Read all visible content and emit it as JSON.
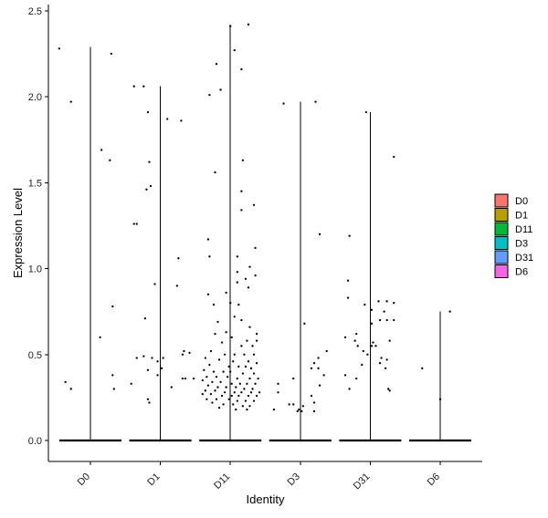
{
  "chart_data": {
    "type": "scatter",
    "subtype": "violin_with_jitter",
    "title": "",
    "xlabel": "Identity",
    "ylabel": "Expression Level",
    "ylim": [
      -0.13,
      2.55
    ],
    "yticks": [
      0.0,
      0.5,
      1.0,
      1.5,
      2.0,
      2.5
    ],
    "ytick_labels": [
      "0.0",
      "0.5",
      "1.0",
      "1.5",
      "2.0",
      "2.5"
    ],
    "categories": [
      "D0",
      "D1",
      "D11",
      "D3",
      "D31",
      "D6"
    ],
    "grid": false,
    "legend": {
      "position": "right",
      "entries": [
        {
          "label": "D0",
          "color": "#F8766D"
        },
        {
          "label": "D1",
          "color": "#B79F00"
        },
        {
          "label": "D11",
          "color": "#00BA38"
        },
        {
          "label": "D3",
          "color": "#00BFC4"
        },
        {
          "label": "D31",
          "color": "#619CFF"
        },
        {
          "label": "D6",
          "color": "#F564E3"
        }
      ]
    },
    "series": [
      {
        "name": "D0",
        "color": "#F8766D",
        "max": 2.29,
        "points": [
          [
            -0.45,
            2.28
          ],
          [
            0.3,
            2.25
          ],
          [
            -0.28,
            1.97
          ],
          [
            0.16,
            1.69
          ],
          [
            0.28,
            1.63
          ],
          [
            0.32,
            0.78
          ],
          [
            0.14,
            0.6
          ],
          [
            0.32,
            0.38
          ],
          [
            -0.36,
            0.34
          ],
          [
            0.34,
            0.3
          ],
          [
            -0.28,
            0.3
          ]
        ]
      },
      {
        "name": "D1",
        "color": "#B79F00",
        "max": 2.06,
        "points": [
          [
            -0.38,
            2.06
          ],
          [
            -0.24,
            2.06
          ],
          [
            -0.18,
            1.91
          ],
          [
            0.1,
            1.87
          ],
          [
            0.3,
            1.86
          ],
          [
            -0.16,
            1.62
          ],
          [
            -0.2,
            1.46
          ],
          [
            -0.14,
            1.48
          ],
          [
            -0.38,
            1.26
          ],
          [
            -0.34,
            1.26
          ],
          [
            0.26,
            1.06
          ],
          [
            -0.08,
            0.91
          ],
          [
            0.24,
            0.9
          ],
          [
            -0.22,
            0.71
          ],
          [
            -0.34,
            0.48
          ],
          [
            -0.24,
            0.49
          ],
          [
            -0.12,
            0.48
          ],
          [
            0.32,
            0.5
          ],
          [
            0.04,
            0.48
          ],
          [
            -0.04,
            0.46
          ],
          [
            0.34,
            0.52
          ],
          [
            0.42,
            0.51
          ],
          [
            -0.18,
            0.41
          ],
          [
            -0.04,
            0.38
          ],
          [
            0.02,
            0.42
          ],
          [
            0.32,
            0.36
          ],
          [
            0.36,
            0.36
          ],
          [
            0.48,
            0.36
          ],
          [
            -0.42,
            0.33
          ],
          [
            0.16,
            0.31
          ],
          [
            -0.18,
            0.24
          ],
          [
            -0.16,
            0.22
          ]
        ]
      },
      {
        "name": "D11",
        "color": "#00BA38",
        "max": 2.42,
        "points": [
          [
            0.0,
            2.41
          ],
          [
            0.26,
            2.42
          ],
          [
            0.06,
            2.27
          ],
          [
            -0.2,
            2.19
          ],
          [
            0.16,
            2.16
          ],
          [
            -0.14,
            2.04
          ],
          [
            -0.3,
            2.01
          ],
          [
            0.18,
            1.63
          ],
          [
            -0.22,
            1.56
          ],
          [
            0.16,
            1.45
          ],
          [
            0.34,
            1.37
          ],
          [
            0.16,
            1.34
          ],
          [
            0.36,
            1.12
          ],
          [
            -0.32,
            1.17
          ],
          [
            0.1,
            1.07
          ],
          [
            -0.3,
            1.07
          ],
          [
            0.28,
            1.01
          ],
          [
            0.1,
            0.98
          ],
          [
            0.22,
            0.94
          ],
          [
            0.36,
            0.96
          ],
          [
            0.26,
            0.89
          ],
          [
            0.1,
            0.92
          ],
          [
            -0.06,
            0.86
          ],
          [
            0.12,
            0.79
          ],
          [
            0.0,
            0.8
          ],
          [
            -0.32,
            0.85
          ],
          [
            -0.24,
            0.79
          ],
          [
            0.06,
            0.72
          ],
          [
            -0.18,
            0.69
          ],
          [
            0.16,
            0.7
          ],
          [
            -0.06,
            0.63
          ],
          [
            0.28,
            0.66
          ],
          [
            0.38,
            0.62
          ],
          [
            -0.22,
            0.62
          ],
          [
            0.02,
            0.6
          ],
          [
            0.24,
            0.58
          ],
          [
            0.38,
            0.58
          ],
          [
            -0.12,
            0.57
          ],
          [
            0.32,
            0.55
          ],
          [
            0.16,
            0.55
          ],
          [
            -0.28,
            0.52
          ],
          [
            -0.08,
            0.5
          ],
          [
            0.06,
            0.5
          ],
          [
            0.2,
            0.5
          ],
          [
            0.34,
            0.5
          ],
          [
            -0.36,
            0.48
          ],
          [
            -0.16,
            0.47
          ],
          [
            0.04,
            0.46
          ],
          [
            0.26,
            0.46
          ],
          [
            0.38,
            0.45
          ],
          [
            -0.3,
            0.44
          ],
          [
            -0.02,
            0.43
          ],
          [
            0.12,
            0.43
          ],
          [
            0.22,
            0.43
          ],
          [
            0.3,
            0.42
          ],
          [
            -0.38,
            0.41
          ],
          [
            -0.24,
            0.4
          ],
          [
            -0.1,
            0.4
          ],
          [
            0.0,
            0.4
          ],
          [
            0.18,
            0.39
          ],
          [
            0.34,
            0.39
          ],
          [
            -0.34,
            0.37
          ],
          [
            -0.2,
            0.37
          ],
          [
            -0.04,
            0.37
          ],
          [
            0.1,
            0.36
          ],
          [
            0.28,
            0.36
          ],
          [
            0.4,
            0.36
          ],
          [
            -0.4,
            0.35
          ],
          [
            -0.26,
            0.34
          ],
          [
            -0.14,
            0.34
          ],
          [
            0.02,
            0.33
          ],
          [
            0.14,
            0.33
          ],
          [
            0.24,
            0.33
          ],
          [
            0.36,
            0.33
          ],
          [
            -0.32,
            0.32
          ],
          [
            -0.18,
            0.31
          ],
          [
            -0.06,
            0.31
          ],
          [
            0.08,
            0.31
          ],
          [
            0.2,
            0.3
          ],
          [
            0.32,
            0.3
          ],
          [
            -0.36,
            0.29
          ],
          [
            -0.22,
            0.29
          ],
          [
            -0.08,
            0.28
          ],
          [
            0.06,
            0.28
          ],
          [
            0.16,
            0.28
          ],
          [
            0.3,
            0.28
          ],
          [
            0.42,
            0.28
          ],
          [
            -0.4,
            0.27
          ],
          [
            -0.28,
            0.27
          ],
          [
            -0.12,
            0.26
          ],
          [
            0.02,
            0.26
          ],
          [
            0.12,
            0.26
          ],
          [
            0.26,
            0.26
          ],
          [
            0.38,
            0.26
          ],
          [
            -0.34,
            0.24
          ],
          [
            -0.2,
            0.24
          ],
          [
            -0.02,
            0.24
          ],
          [
            0.1,
            0.23
          ],
          [
            0.22,
            0.23
          ],
          [
            0.34,
            0.23
          ],
          [
            -0.26,
            0.22
          ],
          [
            -0.1,
            0.21
          ],
          [
            0.04,
            0.21
          ],
          [
            0.18,
            0.2
          ],
          [
            0.28,
            0.2
          ],
          [
            -0.16,
            0.19
          ],
          [
            0.08,
            0.18
          ],
          [
            0.24,
            0.18
          ]
        ]
      },
      {
        "name": "D3",
        "color": "#00BFC4",
        "max": 1.97,
        "points": [
          [
            -0.24,
            1.96
          ],
          [
            0.22,
            1.97
          ],
          [
            0.28,
            1.2
          ],
          [
            0.06,
            0.68
          ],
          [
            0.38,
            0.52
          ],
          [
            0.26,
            0.48
          ],
          [
            0.2,
            0.45
          ],
          [
            0.16,
            0.42
          ],
          [
            0.26,
            0.42
          ],
          [
            0.34,
            0.38
          ],
          [
            -0.1,
            0.36
          ],
          [
            -0.32,
            0.33
          ],
          [
            0.28,
            0.32
          ],
          [
            -0.32,
            0.28
          ],
          [
            0.16,
            0.26
          ],
          [
            0.2,
            0.22
          ],
          [
            -0.16,
            0.21
          ],
          [
            -0.1,
            0.21
          ],
          [
            0.04,
            0.2
          ],
          [
            -0.38,
            0.18
          ],
          [
            -0.02,
            0.18
          ],
          [
            0.02,
            0.17
          ],
          [
            -0.04,
            0.17
          ],
          [
            0.2,
            0.17
          ]
        ]
      },
      {
        "name": "D31",
        "color": "#619CFF",
        "max": 1.91,
        "points": [
          [
            -0.06,
            1.91
          ],
          [
            0.34,
            1.65
          ],
          [
            -0.3,
            1.19
          ],
          [
            -0.32,
            0.93
          ],
          [
            -0.32,
            0.83
          ],
          [
            0.12,
            0.81
          ],
          [
            0.24,
            0.81
          ],
          [
            0.34,
            0.8
          ],
          [
            -0.08,
            0.79
          ],
          [
            0.02,
            0.76
          ],
          [
            0.2,
            0.75
          ],
          [
            0.24,
            0.7
          ],
          [
            0.34,
            0.7
          ],
          [
            0.02,
            0.68
          ],
          [
            0.14,
            0.7
          ],
          [
            -0.2,
            0.62
          ],
          [
            -0.22,
            0.58
          ],
          [
            -0.36,
            0.6
          ],
          [
            0.04,
            0.57
          ],
          [
            0.28,
            0.58
          ],
          [
            -0.18,
            0.55
          ],
          [
            0.02,
            0.55
          ],
          [
            0.08,
            0.55
          ],
          [
            -0.1,
            0.52
          ],
          [
            -0.04,
            0.5
          ],
          [
            0.16,
            0.48
          ],
          [
            0.24,
            0.47
          ],
          [
            -0.12,
            0.44
          ],
          [
            0.14,
            0.45
          ],
          [
            0.22,
            0.42
          ],
          [
            -0.36,
            0.38
          ],
          [
            -0.2,
            0.36
          ],
          [
            0.26,
            0.3
          ],
          [
            0.28,
            0.29
          ],
          [
            -0.3,
            0.3
          ]
        ]
      },
      {
        "name": "D6",
        "color": "#F564E3",
        "max": 0.75,
        "points": [
          [
            0.14,
            0.75
          ],
          [
            -0.26,
            0.42
          ],
          [
            0.0,
            0.24
          ]
        ]
      }
    ]
  }
}
